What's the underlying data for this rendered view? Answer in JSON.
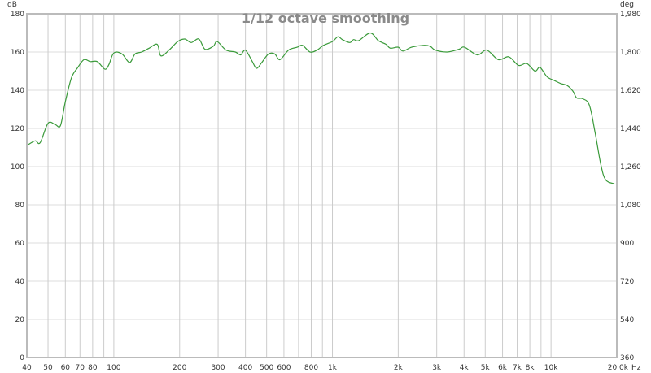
{
  "chart_data": {
    "type": "line",
    "title": "1/12 octave smoothing",
    "ylabel_left": "dB",
    "ylabel_right": "deg",
    "xunit": "Hz",
    "xscale": "log",
    "xlim": [
      40,
      20000
    ],
    "ylim": [
      0,
      180
    ],
    "ylim_right": [
      360,
      1980
    ],
    "grid": true,
    "line_color": "#3a9a3a",
    "y_ticks": [
      "0",
      "20",
      "40",
      "60",
      "80",
      "100",
      "120",
      "140",
      "160",
      "180"
    ],
    "y_ticks_right": [
      "360",
      "540",
      "720",
      "900",
      "1,080",
      "1,260",
      "1,440",
      "1,620",
      "1,800",
      "1,980"
    ],
    "x_ticks": [
      {
        "f": 40,
        "label": "40"
      },
      {
        "f": 50,
        "label": "50"
      },
      {
        "f": 60,
        "label": "60"
      },
      {
        "f": 70,
        "label": "70"
      },
      {
        "f": 80,
        "label": "80"
      },
      {
        "f": 90,
        "label": ""
      },
      {
        "f": 100,
        "label": "100"
      },
      {
        "f": 200,
        "label": "200"
      },
      {
        "f": 300,
        "label": "300"
      },
      {
        "f": 400,
        "label": "400"
      },
      {
        "f": 500,
        "label": "500"
      },
      {
        "f": 600,
        "label": "600"
      },
      {
        "f": 700,
        "label": ""
      },
      {
        "f": 800,
        "label": "800"
      },
      {
        "f": 900,
        "label": ""
      },
      {
        "f": 1000,
        "label": "1k"
      },
      {
        "f": 2000,
        "label": "2k"
      },
      {
        "f": 3000,
        "label": "3k"
      },
      {
        "f": 4000,
        "label": "4k"
      },
      {
        "f": 5000,
        "label": "5k"
      },
      {
        "f": 6000,
        "label": "6k"
      },
      {
        "f": 7000,
        "label": "7k"
      },
      {
        "f": 8000,
        "label": "8k"
      },
      {
        "f": 9000,
        "label": ""
      },
      {
        "f": 10000,
        "label": "10k"
      },
      {
        "f": 20000,
        "label": "20.0k"
      }
    ],
    "series": [
      {
        "x": [
          40,
          43.6,
          46,
          50,
          54,
          57,
          60,
          64,
          68,
          73,
          78,
          84,
          91,
          95,
          100,
          109,
          118,
          125,
          134,
          145,
          158,
          164,
          179,
          196,
          211,
          226,
          245,
          261,
          285,
          297,
          326,
          360,
          380,
          400,
          430,
          450,
          475,
          510,
          545,
          575,
          630,
          690,
          730,
          790,
          850,
          910,
          1000,
          1060,
          1110,
          1200,
          1250,
          1320,
          1490,
          1620,
          1760,
          1840,
          2000,
          2100,
          2300,
          2600,
          2800,
          2950,
          3350,
          3800,
          4020,
          4600,
          5080,
          5740,
          6410,
          7100,
          7740,
          8450,
          8900,
          9600,
          10400,
          11080,
          11850,
          12600,
          13100,
          14000,
          15000,
          15900,
          16900,
          17800,
          19500
        ],
        "y": [
          111,
          113.5,
          112.5,
          122.7,
          122,
          121.5,
          134,
          146.5,
          151.5,
          156,
          155,
          155,
          151,
          153.5,
          159.5,
          159,
          154.5,
          159,
          160,
          162,
          164,
          158,
          161,
          165.5,
          166.8,
          165,
          166.8,
          161.5,
          163,
          165.5,
          161,
          160,
          158.5,
          161,
          155,
          151.5,
          154.5,
          159,
          159,
          156,
          161,
          162.5,
          163.5,
          160,
          161,
          163.5,
          165.5,
          168,
          166.5,
          165,
          166.5,
          166,
          170,
          166,
          164,
          162,
          162.5,
          160.5,
          162.5,
          163.5,
          163,
          161,
          160,
          161.5,
          162.5,
          158.5,
          161,
          156,
          157.5,
          153,
          154,
          150,
          152,
          147,
          145,
          143.5,
          142.5,
          139.5,
          136,
          135.5,
          132,
          118,
          101,
          93,
          91
        ]
      }
    ]
  }
}
